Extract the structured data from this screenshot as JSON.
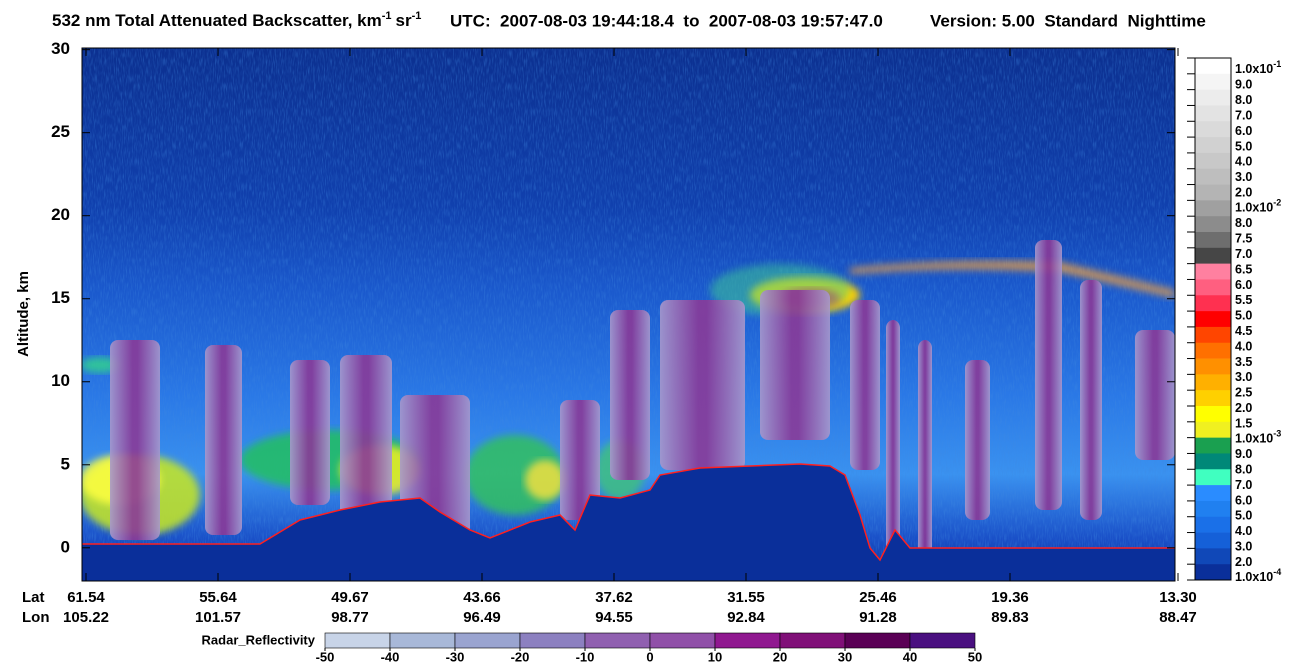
{
  "header": {
    "title": "532 nm Total Attenuated Backscatter, km",
    "title_sup": "-1",
    "title_unit2": "sr",
    "title_sup2": "-1",
    "utc": "UTC:  2007-08-03 19:44:18.4  to  2007-08-03 19:57:47.0",
    "version": "Version: 5.00  Standard  Nighttime"
  },
  "chart_data": {
    "type": "curtain",
    "ylabel": "Altitude, km",
    "ylim": [
      -2,
      30.1
    ],
    "yticks": [
      0,
      5,
      10,
      15,
      20,
      25,
      30
    ],
    "x_row_labels": [
      "Lat",
      "Lon"
    ],
    "lat": [
      "61.54",
      "55.64",
      "49.67",
      "43.66",
      "37.62",
      "31.55",
      "25.46",
      "19.36",
      "13.30"
    ],
    "lon": [
      "105.22",
      "101.57",
      "98.77",
      "96.49",
      "94.55",
      "92.84",
      "91.28",
      "89.83",
      "88.47"
    ],
    "colorbar": {
      "labels": [
        {
          "text": "1.0x10",
          "sup": "-1"
        },
        "9.0",
        "8.0",
        "7.0",
        "6.0",
        "5.0",
        "4.0",
        "3.0",
        "2.0",
        {
          "text": "1.0x10",
          "sup": "-2"
        },
        "8.0",
        "7.5",
        "7.0",
        "6.5",
        "6.0",
        "5.5",
        "5.0",
        "4.5",
        "4.0",
        "3.5",
        "3.0",
        "2.5",
        "2.0",
        "1.5",
        {
          "text": "1.0x10",
          "sup": "-3"
        },
        "9.0",
        "8.0",
        "7.0",
        "6.0",
        "5.0",
        "4.0",
        "3.0",
        "2.0",
        {
          "text": "1.0x10",
          "sup": "-4"
        }
      ],
      "colors": [
        "#ffffff",
        "#f5f5f5",
        "#ececec",
        "#e3e3e3",
        "#dadada",
        "#d1d1d1",
        "#c8c8c8",
        "#bebebe",
        "#b4b4b4",
        "#a0a0a0",
        "#8c8c8c",
        "#6e6e6e",
        "#464646",
        "#ff80a0",
        "#ff5f80",
        "#ff3050",
        "#ff0000",
        "#ff4500",
        "#ff7000",
        "#ff9000",
        "#ffb000",
        "#ffd000",
        "#ffff00",
        "#f0f020",
        "#1aa050",
        "#008878",
        "#40ffc0",
        "#2a8cff",
        "#2080f0",
        "#1a70e8",
        "#1560d8",
        "#1048b8",
        "#0a2f9a"
      ]
    },
    "radar_colorbar": {
      "label": "Radar_Reflectivity",
      "ticks": [
        -50,
        -40,
        -30,
        -20,
        -10,
        0,
        10,
        20,
        30,
        40,
        50
      ],
      "colors": [
        "#c8d4e8",
        "#a8b8d8",
        "#9aa4d0",
        "#8c80c0",
        "#9060b0",
        "#9050a8",
        "#901890",
        "#801078",
        "#5a0055",
        "#4a1080"
      ]
    }
  }
}
